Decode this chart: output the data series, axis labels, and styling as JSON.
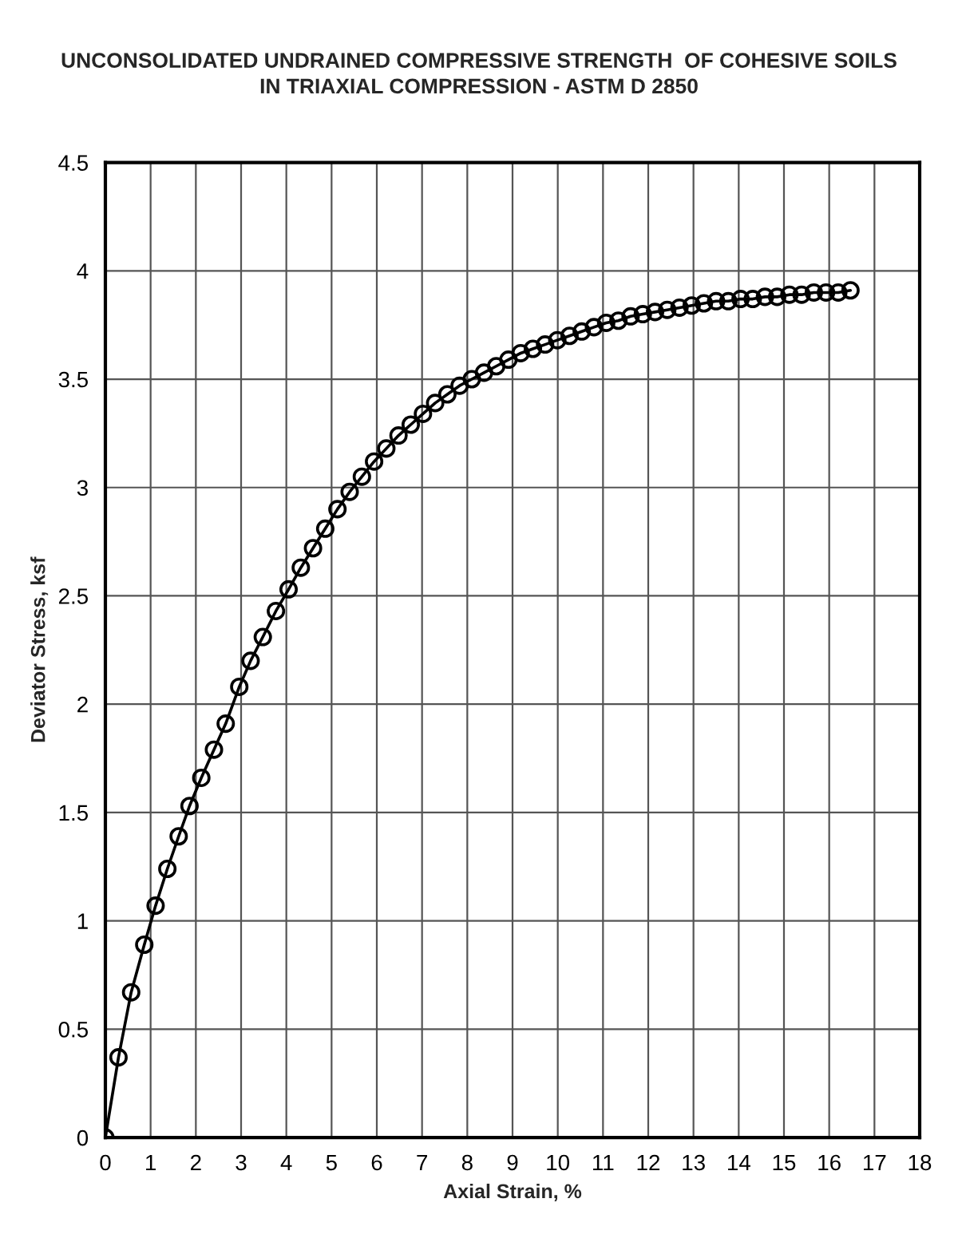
{
  "chart_data": {
    "type": "line",
    "title": "UNCONSOLIDATED UNDRAINED COMPRESSIVE STRENGTH  OF COHESIVE SOILS\nIN TRIAXIAL COMPRESSION - ASTM D 2850",
    "xlabel": "Axial Strain, %",
    "ylabel": "Deviator Stress, ksf",
    "x": [
      0,
      0.29,
      0.57,
      0.86,
      1.11,
      1.37,
      1.62,
      1.86,
      2.12,
      2.4,
      2.66,
      2.96,
      3.21,
      3.48,
      3.77,
      4.05,
      4.32,
      4.59,
      4.86,
      5.13,
      5.4,
      5.67,
      5.94,
      6.21,
      6.48,
      6.75,
      7.02,
      7.29,
      7.56,
      7.83,
      8.1,
      8.37,
      8.64,
      8.91,
      9.18,
      9.45,
      9.72,
      9.99,
      10.26,
      10.53,
      10.8,
      11.07,
      11.34,
      11.61,
      11.88,
      12.15,
      12.42,
      12.69,
      12.96,
      13.23,
      13.5,
      13.77,
      14.04,
      14.31,
      14.58,
      14.85,
      15.12,
      15.39,
      15.66,
      15.93,
      16.2,
      16.47
    ],
    "series": [
      {
        "color": "#000000",
        "values": [
          0,
          0.37,
          0.67,
          0.89,
          1.07,
          1.24,
          1.39,
          1.53,
          1.66,
          1.79,
          1.91,
          2.08,
          2.2,
          2.31,
          2.43,
          2.53,
          2.63,
          2.72,
          2.81,
          2.9,
          2.98,
          3.05,
          3.12,
          3.18,
          3.24,
          3.29,
          3.34,
          3.39,
          3.43,
          3.47,
          3.5,
          3.53,
          3.56,
          3.59,
          3.62,
          3.64,
          3.66,
          3.68,
          3.7,
          3.72,
          3.74,
          3.76,
          3.77,
          3.79,
          3.8,
          3.81,
          3.82,
          3.83,
          3.84,
          3.85,
          3.86,
          3.86,
          3.87,
          3.87,
          3.88,
          3.88,
          3.89,
          3.89,
          3.9,
          3.9,
          3.9,
          3.91
        ]
      }
    ],
    "xlim": [
      0,
      18
    ],
    "xticks": [
      0,
      1,
      2,
      3,
      4,
      5,
      6,
      7,
      8,
      9,
      10,
      11,
      12,
      13,
      14,
      15,
      16,
      17,
      18
    ],
    "ylim": [
      0,
      4.5
    ],
    "yticks": [
      0,
      0.5,
      1,
      1.5,
      2,
      2.5,
      3,
      3.5,
      4,
      4.5
    ],
    "grid": true,
    "marker": "circle",
    "line_style": "solid",
    "legend": false
  }
}
